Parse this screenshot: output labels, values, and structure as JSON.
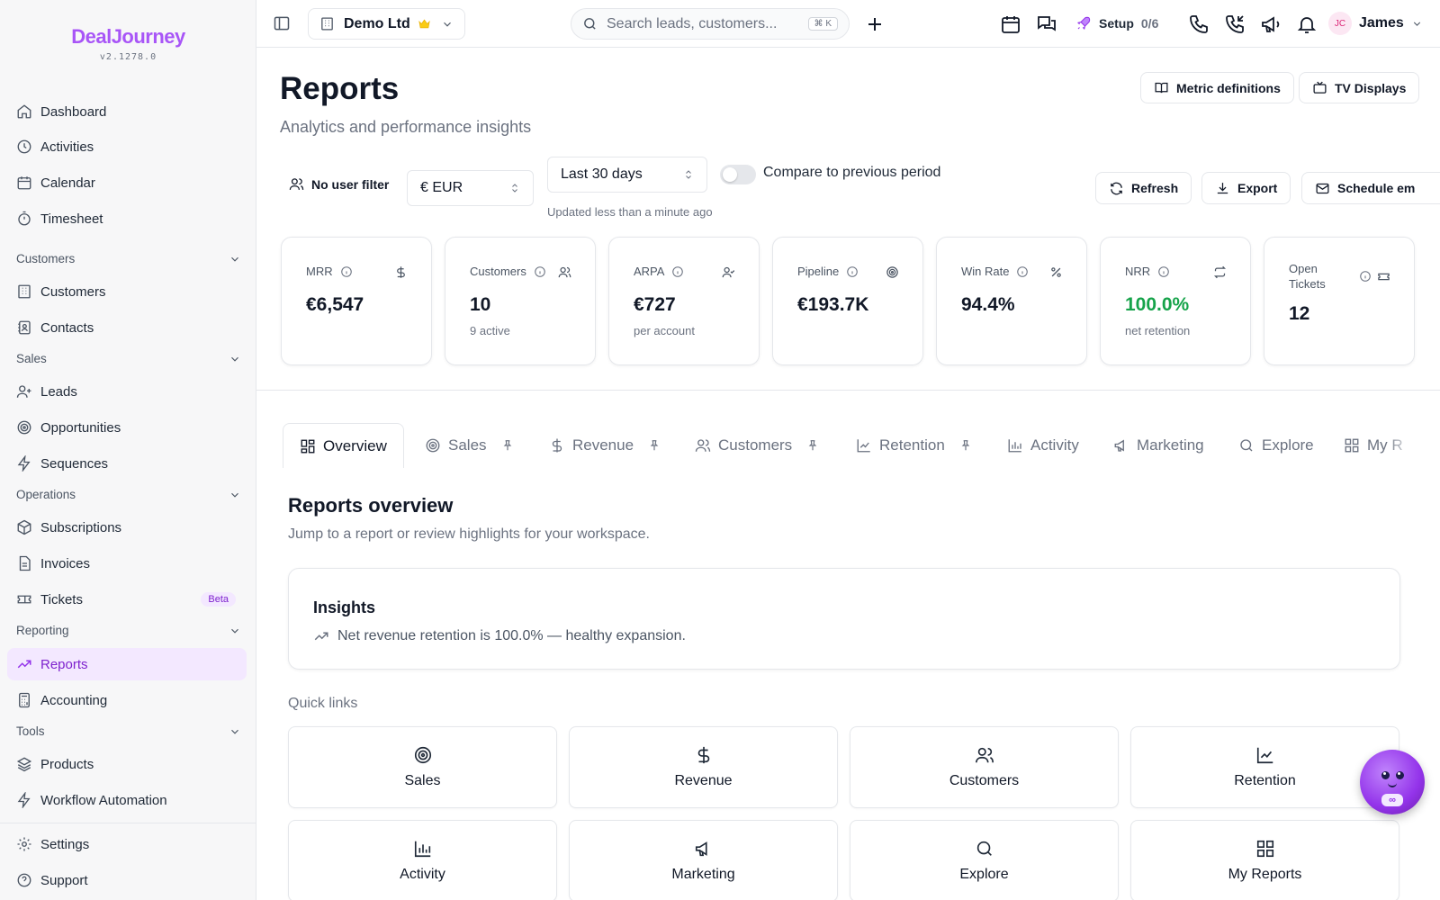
{
  "brand": {
    "name": "DealJourney",
    "version": "v2.1278.0",
    "accent": "#a855f7"
  },
  "sidebar": {
    "items": {
      "dashboard": "Dashboard",
      "activities": "Activities",
      "calendar": "Calendar",
      "timesheet": "Timesheet",
      "customers": "Customers",
      "contacts": "Contacts",
      "leads": "Leads",
      "opportunities": "Opportunities",
      "sequences": "Sequences",
      "subscriptions": "Subscriptions",
      "invoices": "Invoices",
      "tickets": "Tickets",
      "reports": "Reports",
      "accounting": "Accounting",
      "products": "Products",
      "workflow": "Workflow Automation",
      "settings": "Settings",
      "support": "Support"
    },
    "sections": {
      "customers": "Customers",
      "sales": "Sales",
      "operations": "Operations",
      "reporting": "Reporting",
      "tools": "Tools"
    },
    "tickets_badge": "Beta",
    "active": "Reports"
  },
  "topbar": {
    "workspace": "Demo Ltd",
    "search_placeholder": "Search leads, customers...",
    "search_shortcut": "K",
    "setup_label": "Setup",
    "setup_progress": "0/6",
    "user_initials": "JC",
    "user_name": "James"
  },
  "page": {
    "title": "Reports",
    "subtitle": "Analytics and performance insights",
    "metric_definitions": "Metric definitions",
    "tv_displays": "TV Displays"
  },
  "filters": {
    "user_filter": "No user filter",
    "currency": "€ EUR",
    "period": "Last 30 days",
    "compare_label": "Compare to previous period",
    "compare_enabled": false,
    "updated": "Updated less than a minute ago",
    "refresh": "Refresh",
    "export": "Export",
    "schedule": "Schedule em"
  },
  "metrics": [
    {
      "label": "MRR",
      "value": "€6,547",
      "sub": "",
      "icon": "dollar-icon"
    },
    {
      "label": "Customers",
      "value": "10",
      "sub": "9 active",
      "icon": "users-icon"
    },
    {
      "label": "ARPA",
      "value": "€727",
      "sub": "per account",
      "icon": "user-check-icon"
    },
    {
      "label": "Pipeline",
      "value": "€193.7K",
      "sub": "",
      "icon": "target-icon"
    },
    {
      "label": "Win Rate",
      "value": "94.4%",
      "sub": "",
      "icon": "percent-icon"
    },
    {
      "label": "NRR",
      "value": "100.0%",
      "sub": "net retention",
      "icon": "repeat-icon",
      "color": "#16a34a"
    },
    {
      "label": "Open Tickets",
      "value": "12",
      "sub": "",
      "icon": "ticket-icon"
    }
  ],
  "tabs": {
    "overview": "Overview",
    "sales": "Sales",
    "revenue": "Revenue",
    "customers": "Customers",
    "retention": "Retention",
    "activity": "Activity",
    "marketing": "Marketing",
    "explore": "Explore",
    "my_reports": "My R"
  },
  "overview": {
    "title": "Reports overview",
    "subtitle": "Jump to a report or review highlights for your workspace.",
    "insights_title": "Insights",
    "insight_text": "Net revenue retention is 100.0% — healthy expansion.",
    "quick_links_label": "Quick links",
    "quick_links": [
      "Sales",
      "Revenue",
      "Customers",
      "Retention",
      "Activity",
      "Marketing",
      "Explore",
      "My Reports"
    ]
  },
  "assistant": {
    "badge": "∞"
  }
}
